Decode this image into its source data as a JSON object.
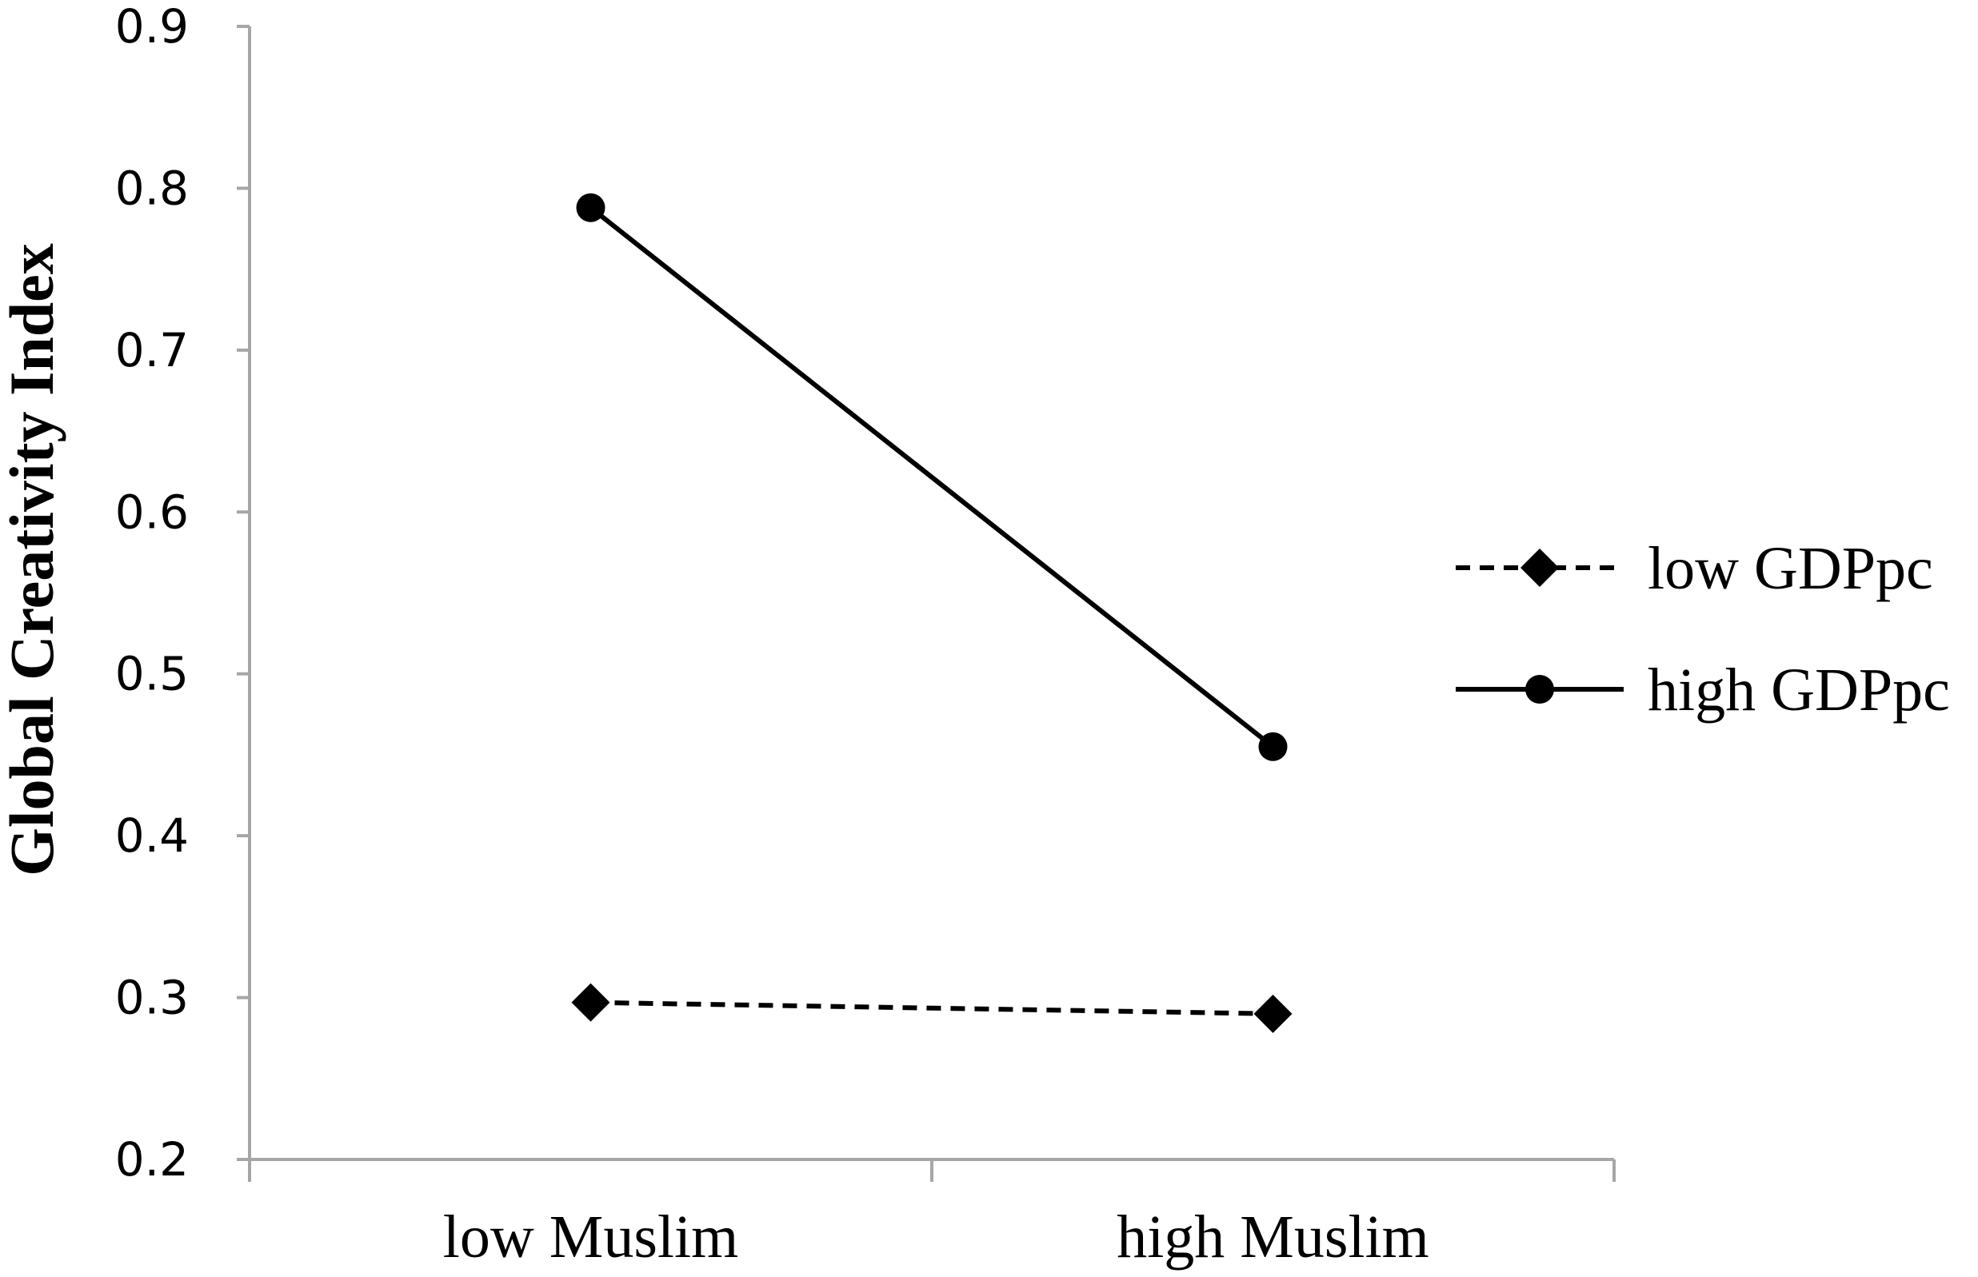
{
  "chart_data": {
    "type": "line",
    "title": "",
    "xlabel": "",
    "ylabel": "Global Creativity Index",
    "categories": [
      "low Muslim",
      "high Muslim"
    ],
    "ylim": [
      0.2,
      0.9
    ],
    "yticks": [
      "0.2",
      "0.3",
      "0.4",
      "0.5",
      "0.6",
      "0.7",
      "0.8",
      "0.9"
    ],
    "grid": false,
    "legend_position": "right",
    "series": [
      {
        "name": "low GDPpc",
        "values": [
          0.297,
          0.29
        ],
        "line_style": "dashed",
        "marker": "diamond",
        "color": "#000000"
      },
      {
        "name": "high GDPpc",
        "values": [
          0.788,
          0.455
        ],
        "line_style": "solid",
        "marker": "circle",
        "color": "#000000"
      }
    ],
    "axis_color": "#a6a6a6"
  }
}
